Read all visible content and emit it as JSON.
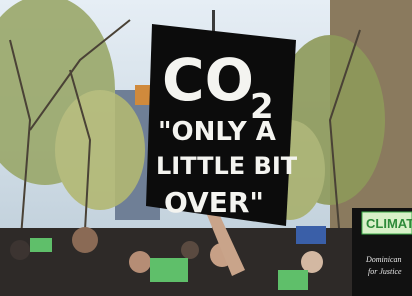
{
  "sign": {
    "lines": [
      "CO",
      "2",
      "\"ONLY A",
      "LITTLE BIT",
      "OVER\""
    ]
  },
  "banner": {
    "text": "CLIMAT"
  },
  "placard": {
    "lines": [
      "Dominican",
      "for Justice"
    ]
  }
}
